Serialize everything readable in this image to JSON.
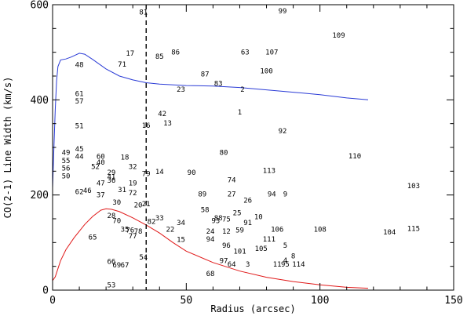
{
  "chart_data": {
    "type": "scatter",
    "title": "",
    "xlabel": "Radius (arcsec)",
    "ylabel": "CO(2-1) Line Width (km/s)",
    "xlim": [
      0,
      150
    ],
    "ylim": [
      0,
      600
    ],
    "xticks": [
      0,
      50,
      100,
      150
    ],
    "yticks": [
      0,
      200,
      400,
      600
    ],
    "marker_style": "numeric text labels",
    "vertical_line": {
      "x": 35,
      "style": "dashed",
      "color": "#000000"
    },
    "points": [
      {
        "label": "81",
        "x": 34,
        "y": 584
      },
      {
        "label": "99",
        "x": 86,
        "y": 587
      },
      {
        "label": "109",
        "x": 107,
        "y": 536
      },
      {
        "label": "17",
        "x": 29,
        "y": 498
      },
      {
        "label": "86",
        "x": 46,
        "y": 500
      },
      {
        "label": "85",
        "x": 40,
        "y": 491
      },
      {
        "label": "63",
        "x": 72,
        "y": 500
      },
      {
        "label": "107",
        "x": 82,
        "y": 500
      },
      {
        "label": "71",
        "x": 26,
        "y": 475
      },
      {
        "label": "48",
        "x": 10,
        "y": 474
      },
      {
        "label": "100",
        "x": 80,
        "y": 461
      },
      {
        "label": "87",
        "x": 57,
        "y": 454
      },
      {
        "label": "83",
        "x": 62,
        "y": 434
      },
      {
        "label": "23",
        "x": 48,
        "y": 422
      },
      {
        "label": "2",
        "x": 71,
        "y": 422
      },
      {
        "label": "61",
        "x": 10,
        "y": 413
      },
      {
        "label": "57",
        "x": 10,
        "y": 397
      },
      {
        "label": "1",
        "x": 70,
        "y": 374
      },
      {
        "label": "42",
        "x": 41,
        "y": 371
      },
      {
        "label": "13",
        "x": 43,
        "y": 351
      },
      {
        "label": "16",
        "x": 35,
        "y": 346
      },
      {
        "label": "51",
        "x": 10,
        "y": 345
      },
      {
        "label": "92",
        "x": 86,
        "y": 335
      },
      {
        "label": "45",
        "x": 10,
        "y": 297
      },
      {
        "label": "49",
        "x": 5,
        "y": 289
      },
      {
        "label": "80",
        "x": 64,
        "y": 289
      },
      {
        "label": "110",
        "x": 113,
        "y": 282
      },
      {
        "label": "44",
        "x": 10,
        "y": 281
      },
      {
        "label": "60",
        "x": 18,
        "y": 281
      },
      {
        "label": "18",
        "x": 27,
        "y": 279
      },
      {
        "label": "55",
        "x": 5,
        "y": 272
      },
      {
        "label": "40",
        "x": 18,
        "y": 269
      },
      {
        "label": "56",
        "x": 5,
        "y": 256
      },
      {
        "label": "52",
        "x": 16,
        "y": 260
      },
      {
        "label": "32",
        "x": 30,
        "y": 260
      },
      {
        "label": "113",
        "x": 81,
        "y": 251
      },
      {
        "label": "14",
        "x": 40,
        "y": 249
      },
      {
        "label": "90",
        "x": 52,
        "y": 247
      },
      {
        "label": "79",
        "x": 35,
        "y": 245
      },
      {
        "label": "29",
        "x": 22,
        "y": 247
      },
      {
        "label": "50",
        "x": 5,
        "y": 240
      },
      {
        "label": "41",
        "x": 22,
        "y": 238
      },
      {
        "label": "74",
        "x": 67,
        "y": 232
      },
      {
        "label": "36",
        "x": 22,
        "y": 231
      },
      {
        "label": "47",
        "x": 18,
        "y": 225
      },
      {
        "label": "19",
        "x": 30,
        "y": 225
      },
      {
        "label": "31",
        "x": 26,
        "y": 211
      },
      {
        "label": "103",
        "x": 135,
        "y": 219
      },
      {
        "label": "62",
        "x": 10,
        "y": 207
      },
      {
        "label": "46",
        "x": 13,
        "y": 209
      },
      {
        "label": "72",
        "x": 30,
        "y": 204
      },
      {
        "label": "89",
        "x": 56,
        "y": 202
      },
      {
        "label": "27",
        "x": 67,
        "y": 202
      },
      {
        "label": "94",
        "x": 82,
        "y": 202
      },
      {
        "label": "9",
        "x": 87,
        "y": 202
      },
      {
        "label": "37",
        "x": 18,
        "y": 200
      },
      {
        "label": "26",
        "x": 73,
        "y": 189
      },
      {
        "label": "30",
        "x": 24,
        "y": 185
      },
      {
        "label": "21",
        "x": 35,
        "y": 181
      },
      {
        "label": "20",
        "x": 32,
        "y": 179
      },
      {
        "label": "58",
        "x": 57,
        "y": 169
      },
      {
        "label": "25",
        "x": 69,
        "y": 162
      },
      {
        "label": "28",
        "x": 22,
        "y": 157
      },
      {
        "label": "33",
        "x": 40,
        "y": 152
      },
      {
        "label": "10",
        "x": 77,
        "y": 154
      },
      {
        "label": "88",
        "x": 62,
        "y": 152
      },
      {
        "label": "93",
        "x": 61,
        "y": 146
      },
      {
        "label": "75",
        "x": 65,
        "y": 149
      },
      {
        "label": "82",
        "x": 37,
        "y": 144
      },
      {
        "label": "70",
        "x": 24,
        "y": 146
      },
      {
        "label": "34",
        "x": 48,
        "y": 142
      },
      {
        "label": "91",
        "x": 73,
        "y": 142
      },
      {
        "label": "35",
        "x": 27,
        "y": 128
      },
      {
        "label": "76",
        "x": 29,
        "y": 126
      },
      {
        "label": "78",
        "x": 32,
        "y": 124
      },
      {
        "label": "22",
        "x": 44,
        "y": 128
      },
      {
        "label": "24",
        "x": 59,
        "y": 124
      },
      {
        "label": "12",
        "x": 65,
        "y": 124
      },
      {
        "label": "59",
        "x": 70,
        "y": 126
      },
      {
        "label": "106",
        "x": 84,
        "y": 128
      },
      {
        "label": "108",
        "x": 100,
        "y": 128
      },
      {
        "label": "115",
        "x": 135,
        "y": 129
      },
      {
        "label": "104",
        "x": 126,
        "y": 122
      },
      {
        "label": "77",
        "x": 30,
        "y": 114
      },
      {
        "label": "65",
        "x": 15,
        "y": 111
      },
      {
        "label": "15",
        "x": 48,
        "y": 106
      },
      {
        "label": "94",
        "x": 59,
        "y": 107
      },
      {
        "label": "111",
        "x": 81,
        "y": 107
      },
      {
        "label": "96",
        "x": 65,
        "y": 94
      },
      {
        "label": "5",
        "x": 87,
        "y": 94
      },
      {
        "label": "101",
        "x": 70,
        "y": 82
      },
      {
        "label": "105",
        "x": 78,
        "y": 87
      },
      {
        "label": "54",
        "x": 34,
        "y": 69
      },
      {
        "label": "8",
        "x": 90,
        "y": 72
      },
      {
        "label": "97",
        "x": 64,
        "y": 62
      },
      {
        "label": "66",
        "x": 22,
        "y": 60
      },
      {
        "label": "4",
        "x": 87,
        "y": 63
      },
      {
        "label": "64",
        "x": 67,
        "y": 54
      },
      {
        "label": "3",
        "x": 73,
        "y": 54
      },
      {
        "label": "69",
        "x": 24,
        "y": 53
      },
      {
        "label": "67",
        "x": 27,
        "y": 53
      },
      {
        "label": "11",
        "x": 84,
        "y": 54
      },
      {
        "label": "95",
        "x": 87,
        "y": 54
      },
      {
        "label": "114",
        "x": 92,
        "y": 54
      },
      {
        "label": "68",
        "x": 59,
        "y": 35
      },
      {
        "label": "53",
        "x": 22,
        "y": 11
      }
    ],
    "curves": [
      {
        "color": "#2a3bd6",
        "points": [
          [
            0,
            215
          ],
          [
            0.5,
            300
          ],
          [
            1,
            380
          ],
          [
            1.5,
            440
          ],
          [
            2,
            470
          ],
          [
            3,
            484
          ],
          [
            5,
            486
          ],
          [
            7,
            490
          ],
          [
            10,
            498
          ],
          [
            12,
            496
          ],
          [
            15,
            485
          ],
          [
            20,
            465
          ],
          [
            25,
            450
          ],
          [
            30,
            442
          ],
          [
            35,
            436
          ],
          [
            40,
            433
          ],
          [
            50,
            430
          ],
          [
            60,
            429
          ],
          [
            70,
            426
          ],
          [
            80,
            421
          ],
          [
            90,
            416
          ],
          [
            100,
            411
          ],
          [
            110,
            404
          ],
          [
            118,
            400
          ]
        ]
      },
      {
        "color": "#e01818",
        "points": [
          [
            0,
            20
          ],
          [
            1,
            28
          ],
          [
            2,
            45
          ],
          [
            3,
            62
          ],
          [
            5,
            85
          ],
          [
            8,
            110
          ],
          [
            12,
            138
          ],
          [
            15,
            155
          ],
          [
            18,
            168
          ],
          [
            20,
            171
          ],
          [
            22,
            170
          ],
          [
            25,
            165
          ],
          [
            30,
            152
          ],
          [
            35,
            137
          ],
          [
            40,
            120
          ],
          [
            45,
            100
          ],
          [
            50,
            82
          ],
          [
            60,
            58
          ],
          [
            70,
            40
          ],
          [
            80,
            27
          ],
          [
            90,
            18
          ],
          [
            100,
            11
          ],
          [
            110,
            6
          ],
          [
            118,
            4
          ]
        ]
      }
    ]
  }
}
